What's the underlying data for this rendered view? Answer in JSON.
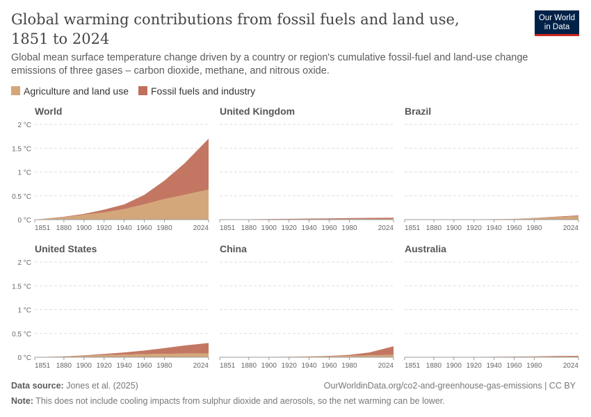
{
  "header": {
    "title": "Global warming contributions from fossil fuels and land use, 1851 to 2024",
    "subtitle": "Global mean surface temperature change driven by a country or region's cumulative fossil-fuel and land-use change emissions of three gases – carbon dioxide, methane, and nitrous oxide.",
    "logo": "Our World in Data"
  },
  "footer": {
    "source_label": "Data source:",
    "source": "Jones et al. (2025)",
    "url": "OurWorldinData.org/co2-and-greenhouse-gas-emissions | CC BY",
    "note_label": "Note:",
    "note": "This does not include cooling impacts from sulphur dioxide and aerosols, so the net warming can be lower."
  },
  "colors": {
    "land": "#d4a77a",
    "fossil": "#c0705a"
  },
  "chart_data": {
    "type": "area",
    "stacked": true,
    "legend": [
      "Agriculture and land use",
      "Fossil fuels and industry"
    ],
    "legend_placement": "top-left",
    "x": [
      1851,
      1880,
      1900,
      1920,
      1940,
      1960,
      1980,
      2000,
      2024
    ],
    "x_ticks": [
      "1851",
      "1880",
      "1900",
      "1920",
      "1940",
      "1960",
      "1980",
      "2024"
    ],
    "y_ticks": [
      "0 °C",
      "0.5 °C",
      "1 °C",
      "1.5 °C",
      "2 °C"
    ],
    "ylim": [
      0,
      2
    ],
    "grid": true,
    "panels": [
      {
        "title": "World",
        "land": [
          0,
          0.05,
          0.1,
          0.15,
          0.22,
          0.32,
          0.43,
          0.52,
          0.63
        ],
        "fossil": [
          0,
          0.01,
          0.02,
          0.06,
          0.1,
          0.2,
          0.39,
          0.66,
          1.07
        ]
      },
      {
        "title": "United Kingdom",
        "land": [
          0,
          0.003,
          0.005,
          0.006,
          0.007,
          0.008,
          0.009,
          0.01,
          0.01
        ],
        "fossil": [
          0,
          0.004,
          0.007,
          0.01,
          0.014,
          0.018,
          0.023,
          0.027,
          0.03
        ]
      },
      {
        "title": "Brazil",
        "land": [
          0,
          0.002,
          0.003,
          0.005,
          0.008,
          0.015,
          0.03,
          0.05,
          0.07
        ],
        "fossil": [
          0,
          0,
          0,
          0,
          0.001,
          0.002,
          0.005,
          0.01,
          0.02
        ]
      },
      {
        "title": "United States",
        "land": [
          0,
          0.015,
          0.03,
          0.045,
          0.055,
          0.065,
          0.072,
          0.076,
          0.08
        ],
        "fossil": [
          0,
          0.003,
          0.01,
          0.025,
          0.045,
          0.075,
          0.12,
          0.17,
          0.22
        ]
      },
      {
        "title": "China",
        "land": [
          0,
          0.004,
          0.007,
          0.01,
          0.015,
          0.022,
          0.03,
          0.04,
          0.05
        ],
        "fossil": [
          0,
          0,
          0,
          0.001,
          0.003,
          0.008,
          0.02,
          0.06,
          0.18
        ]
      },
      {
        "title": "Australia",
        "land": [
          0,
          0.002,
          0.004,
          0.006,
          0.008,
          0.01,
          0.012,
          0.014,
          0.015
        ],
        "fossil": [
          0,
          0,
          0,
          0.001,
          0.002,
          0.004,
          0.007,
          0.011,
          0.015
        ]
      }
    ]
  }
}
